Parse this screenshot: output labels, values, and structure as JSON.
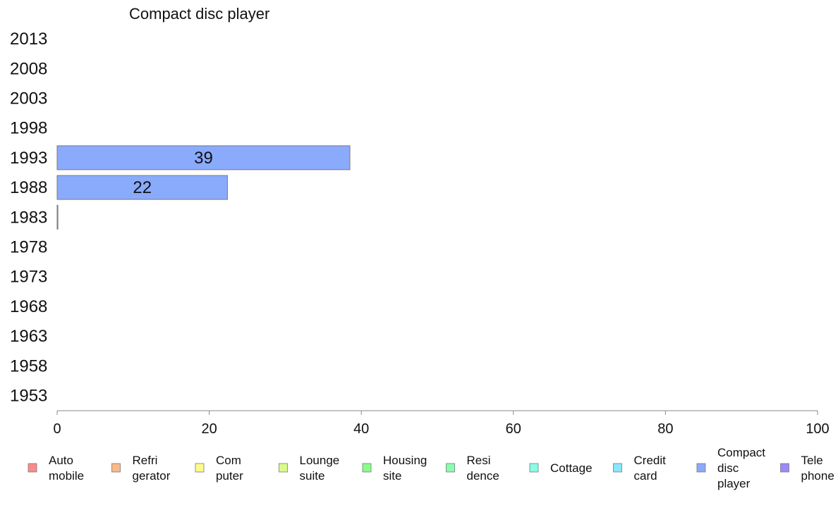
{
  "chart_data": {
    "type": "bar",
    "orientation": "horizontal",
    "title": "Compact disc player",
    "categories": [
      "2013",
      "2008",
      "2003",
      "1998",
      "1993",
      "1988",
      "1983",
      "1978",
      "1973",
      "1968",
      "1963",
      "1958",
      "1953"
    ],
    "series": [
      {
        "name": "Compact disc player",
        "color": "#8aaafc",
        "values": [
          null,
          null,
          null,
          null,
          38.5,
          22.4,
          0.1,
          null,
          null,
          null,
          null,
          null,
          null
        ],
        "labels": [
          "",
          "",
          "",
          "",
          "39",
          "22",
          "",
          "",
          "",
          "",
          "",
          "",
          ""
        ]
      }
    ],
    "xlim": [
      0,
      100
    ],
    "xticks": [
      "0",
      "20",
      "40",
      "60",
      "80",
      "100"
    ],
    "grid": false,
    "legend_position": "bottom",
    "legend": [
      {
        "lines": [
          "Auto",
          "mobile"
        ],
        "color": "#fc8a8a"
      },
      {
        "lines": [
          "Refri",
          "gerator"
        ],
        "color": "#fcb88a"
      },
      {
        "lines": [
          "Com",
          "puter"
        ],
        "color": "#fcfc8a"
      },
      {
        "lines": [
          "Lounge",
          "suite"
        ],
        "color": "#d8fc8a"
      },
      {
        "lines": [
          "Housing",
          "site"
        ],
        "color": "#8afc8a"
      },
      {
        "lines": [
          "Resi",
          "dence"
        ],
        "color": "#8afcb0"
      },
      {
        "lines": [
          "Cottage"
        ],
        "color": "#8afce6"
      },
      {
        "lines": [
          "Credit",
          "card"
        ],
        "color": "#8ae6fc"
      },
      {
        "lines": [
          "Compact",
          "disc",
          "player"
        ],
        "color": "#8aaafc"
      },
      {
        "lines": [
          "Tele",
          "phone"
        ],
        "color": "#9a8afc"
      }
    ]
  }
}
